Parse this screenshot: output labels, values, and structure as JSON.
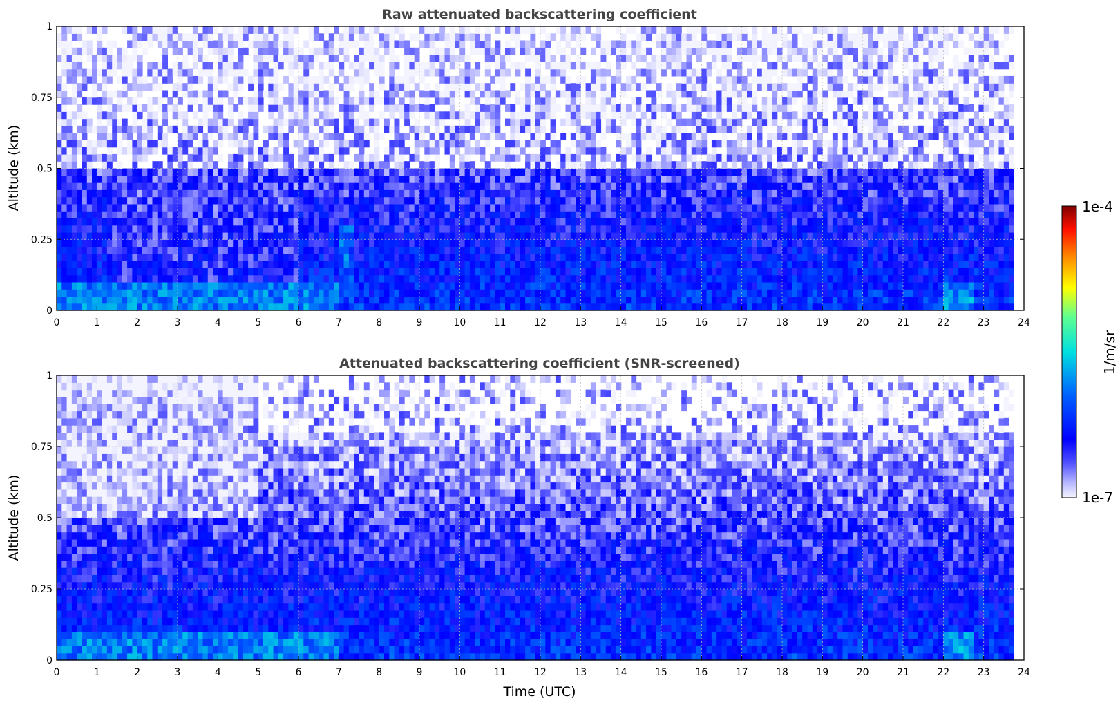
{
  "chart_data": [
    {
      "type": "heatmap",
      "title": "Raw attenuated backscattering coefficient",
      "xlabel": "",
      "ylabel": "Altitude (km)",
      "xlim": [
        0,
        24
      ],
      "ylim": [
        0,
        1
      ],
      "x_ticks": [
        "0",
        "1",
        "2",
        "3",
        "4",
        "5",
        "6",
        "7",
        "8",
        "9",
        "10",
        "11",
        "12",
        "13",
        "14",
        "15",
        "16",
        "17",
        "18",
        "19",
        "20",
        "21",
        "22",
        "23",
        "24"
      ],
      "y_ticks": [
        "0",
        "0.25",
        "0.5",
        "0.75",
        "1"
      ],
      "grid": true,
      "data_end_time": 23.75,
      "color_scale": "log",
      "zlim": [
        1e-07,
        0.0001
      ],
      "features": [
        {
          "time_range": [
            0,
            7
          ],
          "altitude_range": [
            0.0,
            0.1
          ],
          "log10_value": -5.7,
          "note": "high backscatter near surface"
        },
        {
          "time_range": [
            1.3,
            6.0
          ],
          "altitude_range": [
            0.1,
            0.45
          ],
          "log10_value": -6.6
        },
        {
          "time_range": [
            7.0,
            7.4
          ],
          "altitude_range": [
            0.1,
            0.3
          ],
          "log10_value": -5.8
        },
        {
          "time_range": [
            22.0,
            22.8
          ],
          "altitude_range": [
            0.0,
            0.1
          ],
          "log10_value": -5.6
        },
        {
          "time_range": [
            0,
            24
          ],
          "altitude_range": [
            0.5,
            1.0
          ],
          "log10_value": -6.9,
          "note": "noisy upper levels"
        }
      ]
    },
    {
      "type": "heatmap",
      "title": "Attenuated backscattering coefficient (SNR-screened)",
      "xlabel": "Time (UTC)",
      "ylabel": "Altitude (km)",
      "xlim": [
        0,
        24
      ],
      "ylim": [
        0,
        1
      ],
      "x_ticks": [
        "0",
        "1",
        "2",
        "3",
        "4",
        "5",
        "6",
        "7",
        "8",
        "9",
        "10",
        "11",
        "12",
        "13",
        "14",
        "15",
        "16",
        "17",
        "18",
        "19",
        "20",
        "21",
        "22",
        "23",
        "24"
      ],
      "y_ticks": [
        "0",
        "0.25",
        "0.5",
        "0.75",
        "1"
      ],
      "grid": true,
      "data_end_time": 23.75,
      "color_scale": "log",
      "zlim": [
        1e-07,
        0.0001
      ],
      "features": [
        {
          "time_range": [
            0,
            5
          ],
          "altitude_range": [
            0.5,
            0.8
          ],
          "log10_value": -7.0,
          "note": "low signal, pale region"
        },
        {
          "time_range": [
            0,
            7
          ],
          "altitude_range": [
            0.0,
            0.1
          ],
          "log10_value": -5.7
        },
        {
          "time_range": [
            22.0,
            22.8
          ],
          "altitude_range": [
            0.0,
            0.1
          ],
          "log10_value": -5.6
        },
        {
          "time_range": [
            5,
            24
          ],
          "altitude_range": [
            0.8,
            1.0
          ],
          "log10_value": -6.8,
          "note": "sparse screened pixels"
        }
      ]
    }
  ],
  "colorbar": {
    "label": "1/m/sr",
    "max_label": "1e-4",
    "min_label": "1e-7",
    "colormap": "jet (white at low end)"
  }
}
